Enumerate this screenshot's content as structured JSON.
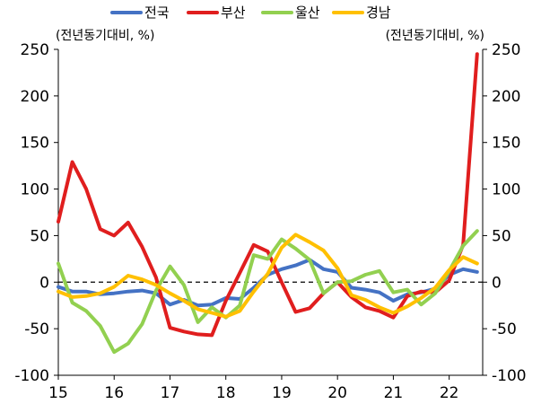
{
  "chart_data": {
    "type": "line",
    "left_unit_label": "(전년동기대비, %)",
    "right_unit_label": "(전년동기대비, %)",
    "ylim": [
      -100,
      250
    ],
    "yticks": [
      -100,
      -50,
      0,
      50,
      100,
      150,
      200,
      250
    ],
    "xlim": [
      15,
      22.6
    ],
    "xticks": [
      "15",
      "16",
      "17",
      "18",
      "19",
      "20",
      "21",
      "22"
    ],
    "zero_line": "dashed",
    "grid": false,
    "legend_position": "top",
    "x": [
      15.0,
      15.25,
      15.5,
      15.75,
      16.0,
      16.25,
      16.5,
      16.75,
      17.0,
      17.25,
      17.5,
      17.75,
      18.0,
      18.25,
      18.5,
      18.75,
      19.0,
      19.25,
      19.5,
      19.75,
      20.0,
      20.25,
      20.5,
      20.75,
      21.0,
      21.25,
      21.5,
      21.75,
      22.0,
      22.25,
      22.5
    ],
    "series": [
      {
        "name": "전국",
        "color": "#4472C4",
        "values": [
          -5,
          -10,
          -10,
          -13,
          -12,
          -10,
          -9,
          -12,
          -24,
          -19,
          -25,
          -24,
          -17,
          -18,
          -6,
          8,
          14,
          18,
          24,
          14,
          11,
          -6,
          -8,
          -11,
          -20,
          -13,
          -11,
          -7,
          8,
          14,
          11
        ]
      },
      {
        "name": "부산",
        "color": "#E01E1E",
        "values": [
          65,
          129,
          100,
          57,
          50,
          64,
          38,
          5,
          -49,
          -53,
          -56,
          -57,
          -20,
          10,
          40,
          33,
          0,
          -32,
          -28,
          -12,
          0,
          -16,
          -27,
          -31,
          -38,
          -15,
          -10,
          -11,
          2,
          40,
          245
        ]
      },
      {
        "name": "울산",
        "color": "#92D050",
        "values": [
          20,
          -22,
          -31,
          -47,
          -75,
          -66,
          -45,
          -9,
          17,
          -3,
          -43,
          -27,
          -38,
          -25,
          29,
          25,
          46,
          36,
          24,
          -12,
          0,
          1,
          8,
          12,
          -11,
          -8,
          -24,
          -12,
          12,
          39,
          55
        ]
      },
      {
        "name": "경남",
        "color": "#FFC000",
        "values": [
          -10,
          -16,
          -15,
          -12,
          -5,
          7,
          3,
          -3,
          -12,
          -20,
          -29,
          -33,
          -37,
          -31,
          -10,
          9,
          37,
          51,
          43,
          34,
          15,
          -14,
          -19,
          -27,
          -33,
          -26,
          -17,
          -6,
          13,
          27,
          20
        ]
      }
    ]
  }
}
